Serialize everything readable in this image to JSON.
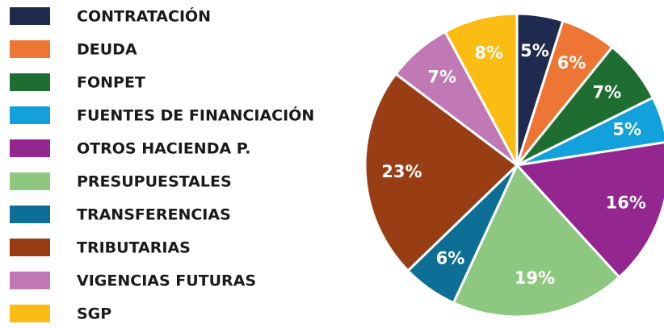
{
  "chart_data": {
    "type": "pie",
    "categories": [
      "CONTRATACIÓN",
      "DEUDA",
      "FONPET",
      "FUENTES DE FINANCIACIÓN",
      "OTROS HACIENDA P.",
      "PRESUPUESTALES",
      "TRANSFERENCIAS",
      "TRIBUTARIAS",
      "VIGENCIAS FUTURAS",
      "SGP"
    ],
    "values": [
      5,
      6,
      7,
      5,
      16,
      19,
      6,
      23,
      7,
      8
    ],
    "value_labels": [
      "5%",
      "6%",
      "7%",
      "5%",
      "16%",
      "19%",
      "6%",
      "23%",
      "7%",
      "8%"
    ],
    "colors": [
      "#1f2a4f",
      "#ee7634",
      "#1e6e32",
      "#12a1db",
      "#93278f",
      "#8ec77f",
      "#0e6f96",
      "#983d14",
      "#c179b5",
      "#fbbc13"
    ],
    "legend": "left"
  }
}
